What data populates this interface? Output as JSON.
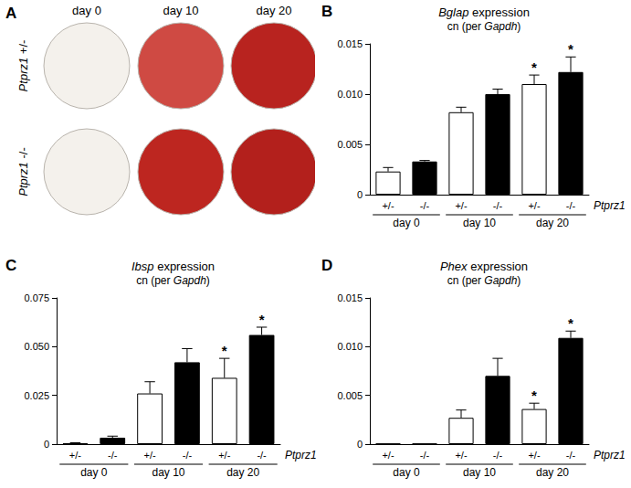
{
  "image_panel": {
    "panel_label": "A",
    "columns": [
      "day 0",
      "day 10",
      "day 20"
    ],
    "row_gene": "Ptprz1",
    "rows": [
      "+/-",
      "-/-"
    ],
    "well_colors": [
      [
        "#f4f1ec",
        "#cf4a43",
        "#b8231f"
      ],
      [
        "#f4f1ec",
        "#bd2620",
        "#b3201c"
      ]
    ]
  },
  "chart_data": [
    {
      "type": "bar",
      "panel_label": "B",
      "title": "Bglap expression",
      "subtitle": "cn (per Gapdh)",
      "categories": [
        "+/-",
        "-/-",
        "+/-",
        "-/-",
        "+/-",
        "-/-"
      ],
      "x_groups": [
        "day 0",
        "day 10",
        "day 20"
      ],
      "xlabel": "Ptprz1",
      "values": [
        0.0023,
        0.0033,
        0.0082,
        0.01,
        0.011,
        0.0122
      ],
      "errors": [
        0.0004,
        0.0001,
        0.0005,
        0.0005,
        0.0009,
        0.0015
      ],
      "significance": [
        null,
        null,
        null,
        null,
        "*",
        "*"
      ],
      "colors": [
        "#ffffff",
        "#000000",
        "#ffffff",
        "#000000",
        "#ffffff",
        "#000000"
      ],
      "ylim": [
        0,
        0.015
      ],
      "yticks": [
        0,
        0.005,
        {
          "value": 0.01,
          "label": "0.010"
        },
        0.015
      ],
      "grid": false
    },
    {
      "type": "bar",
      "panel_label": "C",
      "title": "Ibsp expression",
      "subtitle": "cn (per Gapdh)",
      "categories": [
        "+/-",
        "-/-",
        "+/-",
        "-/-",
        "+/-",
        "-/-"
      ],
      "x_groups": [
        "day 0",
        "day 10",
        "day 20"
      ],
      "xlabel": "Ptprz1",
      "values": [
        0.0005,
        0.0033,
        0.026,
        0.042,
        0.034,
        0.056
      ],
      "errors": [
        0.0002,
        0.0008,
        0.006,
        0.007,
        0.01,
        0.004
      ],
      "significance": [
        null,
        null,
        null,
        null,
        "*",
        "*"
      ],
      "colors": [
        "#ffffff",
        "#000000",
        "#ffffff",
        "#000000",
        "#ffffff",
        "#000000"
      ],
      "ylim": [
        0,
        0.075
      ],
      "yticks": [
        0,
        0.025,
        {
          "value": 0.05,
          "label": "0.050"
        },
        0.075
      ],
      "grid": false
    },
    {
      "type": "bar",
      "panel_label": "D",
      "title": "Phex expression",
      "subtitle": "cn (per Gapdh)",
      "categories": [
        "+/-",
        "-/-",
        "+/-",
        "-/-",
        "+/-",
        "-/-"
      ],
      "x_groups": [
        "day 0",
        "day 10",
        "day 20"
      ],
      "xlabel": "Ptprz1",
      "values": [
        5e-05,
        5e-05,
        0.0027,
        0.007,
        0.0036,
        0.0109
      ],
      "errors": [
        0,
        0,
        0.0008,
        0.0018,
        0.0006,
        0.0007
      ],
      "significance": [
        null,
        null,
        null,
        null,
        "*",
        "*"
      ],
      "colors": [
        "#ffffff",
        "#000000",
        "#ffffff",
        "#000000",
        "#ffffff",
        "#000000"
      ],
      "ylim": [
        0,
        0.015
      ],
      "yticks": [
        0,
        0.005,
        {
          "value": 0.01,
          "label": "0.010"
        },
        0.015
      ],
      "grid": false
    }
  ]
}
